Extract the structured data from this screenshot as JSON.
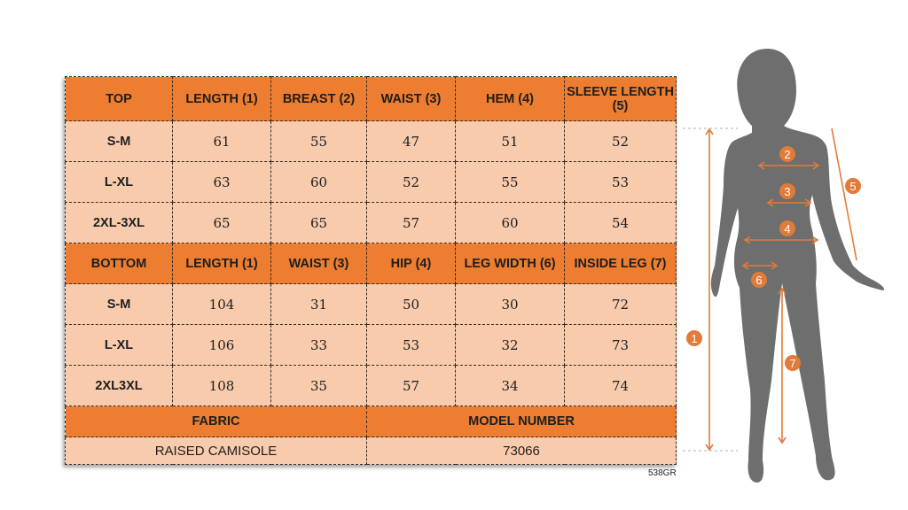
{
  "top": {
    "headers": [
      "TOP",
      "LENGTH (1)",
      "BREAST (2)",
      "WAIST (3)",
      "HEM (4)",
      "SLEEVE LENGTH (5)"
    ],
    "rows": [
      [
        "S-M",
        "61",
        "55",
        "47",
        "51",
        "52"
      ],
      [
        "L-XL",
        "63",
        "60",
        "52",
        "55",
        "53"
      ],
      [
        "2XL-3XL",
        "65",
        "65",
        "57",
        "60",
        "54"
      ]
    ]
  },
  "bottom": {
    "headers": [
      "BOTTOM",
      "LENGTH (1)",
      "WAIST (3)",
      "HIP (4)",
      "LEG WIDTH (6)",
      "INSIDE LEG (7)"
    ],
    "rows": [
      [
        "S-M",
        "104",
        "31",
        "50",
        "30",
        "72"
      ],
      [
        "L-XL",
        "106",
        "33",
        "53",
        "32",
        "73"
      ],
      [
        "2XL3XL",
        "108",
        "35",
        "57",
        "34",
        "74"
      ]
    ]
  },
  "footer": {
    "fabric_label": "FABRIC",
    "model_label": "MODEL NUMBER",
    "fabric_value": "RAISED CAMISOLE",
    "model_value": "73066"
  },
  "code": "538GR",
  "figure": {
    "markers": [
      "1",
      "2",
      "3",
      "4",
      "5",
      "6",
      "7"
    ]
  },
  "colors": {
    "header": "#ED7D31",
    "cell": "#F8CBAD",
    "silhouette": "#6E6E6E",
    "accent": "#E07B39"
  }
}
